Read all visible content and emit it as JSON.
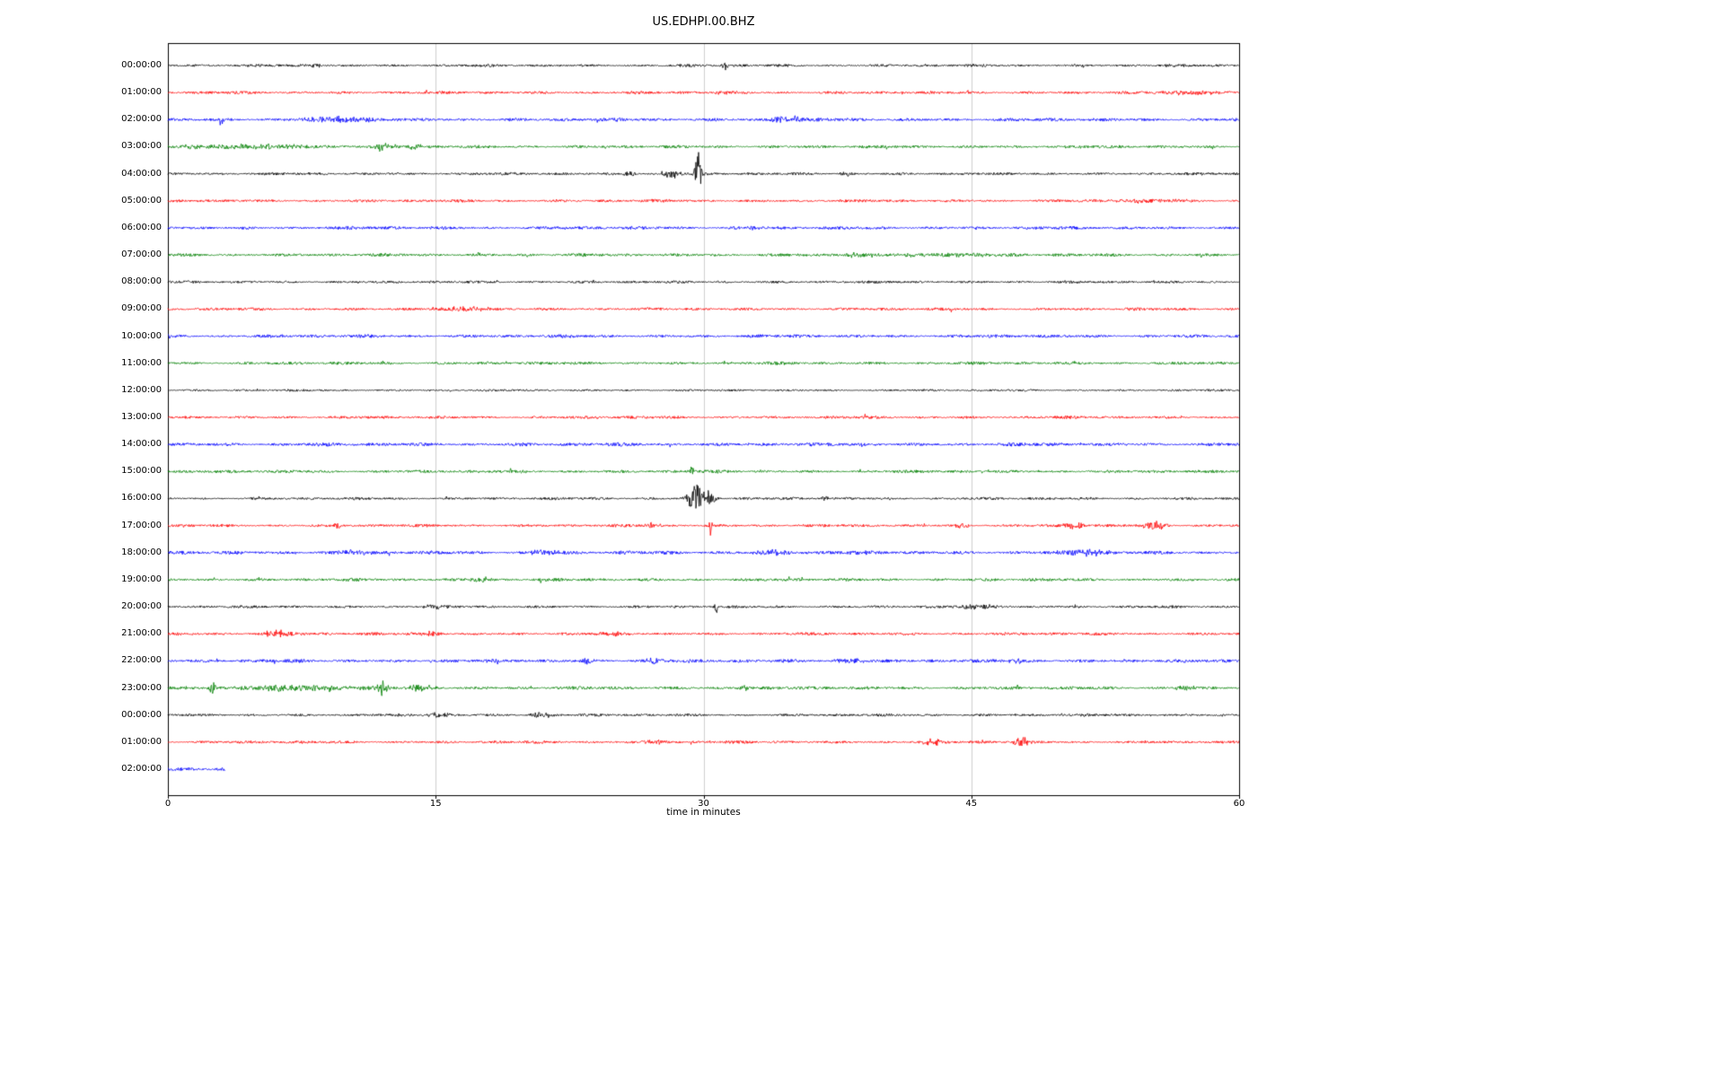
{
  "chart_data": {
    "type": "line",
    "subtype": "seismogram-dayplot",
    "title": "US.EDHPI.00.BHZ",
    "xlabel": "time in minutes",
    "x_range": [
      0,
      60
    ],
    "x_ticks": [
      0,
      15,
      30,
      45,
      60
    ],
    "x_tick_labels": [
      "0",
      "15",
      "30",
      "45",
      "60"
    ],
    "grid": "vertical-light-gray",
    "grid_color": "#cfcfcf",
    "axis_color": "#000000",
    "trace_color_cycle": [
      "#000000",
      "#ff0000",
      "#0000ff",
      "#008000"
    ],
    "rows": [
      {
        "label": "00:00:00",
        "color": "#000000",
        "start_min": 0,
        "end_min": 60,
        "noise": 1.5,
        "events": [
          {
            "t": 8.3,
            "amp": 2.5,
            "w": 0.3
          },
          {
            "t": 31.2,
            "amp": 5,
            "w": 0.1
          },
          {
            "t": 42.5,
            "amp": 3,
            "w": 0.08
          }
        ]
      },
      {
        "label": "01:00:00",
        "color": "#ff0000",
        "start_min": 0,
        "end_min": 60,
        "noise": 1.6,
        "events": [
          {
            "t": 57.5,
            "amp": 2.5,
            "w": 1.2
          },
          {
            "t": 31.0,
            "amp": 2,
            "w": 0.3
          }
        ]
      },
      {
        "label": "02:00:00",
        "color": "#0000ff",
        "start_min": 0,
        "end_min": 60,
        "noise": 1.9,
        "events": [
          {
            "t": 3.0,
            "amp": 6,
            "w": 0.1
          },
          {
            "t": 9.5,
            "amp": 3,
            "w": 1.5
          },
          {
            "t": 34.3,
            "amp": 5,
            "w": 0.3
          },
          {
            "t": 35.2,
            "amp": 4,
            "w": 0.15
          }
        ]
      },
      {
        "label": "03:00:00",
        "color": "#008000",
        "start_min": 0,
        "end_min": 60,
        "noise": 1.7,
        "events": [
          {
            "t": 5.0,
            "amp": 2.5,
            "w": 3.0
          },
          {
            "t": 12.0,
            "amp": 5,
            "w": 0.25
          },
          {
            "t": 13.8,
            "amp": 3,
            "w": 0.4
          }
        ]
      },
      {
        "label": "04:00:00",
        "color": "#000000",
        "start_min": 0,
        "end_min": 60,
        "noise": 1.5,
        "events": [
          {
            "t": 25.8,
            "amp": 3,
            "w": 0.3
          },
          {
            "t": 28.2,
            "amp": 5,
            "w": 0.4
          },
          {
            "t": 29.7,
            "amp": 26,
            "w": 0.12
          },
          {
            "t": 38.0,
            "amp": 2.5,
            "w": 0.3
          }
        ]
      },
      {
        "label": "05:00:00",
        "color": "#ff0000",
        "start_min": 0,
        "end_min": 60,
        "noise": 1.6,
        "events": [
          {
            "t": 55.0,
            "amp": 1.5,
            "w": 2.0
          }
        ]
      },
      {
        "label": "06:00:00",
        "color": "#0000ff",
        "start_min": 0,
        "end_min": 60,
        "noise": 1.8,
        "events": [
          {
            "t": 33.0,
            "amp": 1.5,
            "w": 1.0
          }
        ]
      },
      {
        "label": "07:00:00",
        "color": "#008000",
        "start_min": 0,
        "end_min": 60,
        "noise": 1.7,
        "events": [
          {
            "t": 38.5,
            "amp": 2.5,
            "w": 0.5
          },
          {
            "t": 43.5,
            "amp": 2,
            "w": 2.5
          }
        ]
      },
      {
        "label": "08:00:00",
        "color": "#000000",
        "start_min": 0,
        "end_min": 60,
        "noise": 1.5,
        "events": []
      },
      {
        "label": "09:00:00",
        "color": "#ff0000",
        "start_min": 0,
        "end_min": 60,
        "noise": 1.6,
        "events": [
          {
            "t": 17.0,
            "amp": 2.5,
            "w": 0.8
          }
        ]
      },
      {
        "label": "10:00:00",
        "color": "#0000ff",
        "start_min": 0,
        "end_min": 60,
        "noise": 1.8,
        "events": []
      },
      {
        "label": "11:00:00",
        "color": "#008000",
        "start_min": 0,
        "end_min": 60,
        "noise": 1.7,
        "events": []
      },
      {
        "label": "12:00:00",
        "color": "#000000",
        "start_min": 0,
        "end_min": 60,
        "noise": 1.2,
        "events": []
      },
      {
        "label": "13:00:00",
        "color": "#ff0000",
        "start_min": 0,
        "end_min": 60,
        "noise": 1.6,
        "events": []
      },
      {
        "label": "14:00:00",
        "color": "#0000ff",
        "start_min": 0,
        "end_min": 60,
        "noise": 2.0,
        "events": []
      },
      {
        "label": "15:00:00",
        "color": "#008000",
        "start_min": 0,
        "end_min": 60,
        "noise": 1.7,
        "events": [
          {
            "t": 29.3,
            "amp": 7,
            "w": 0.1
          }
        ]
      },
      {
        "label": "16:00:00",
        "color": "#000000",
        "start_min": 0,
        "end_min": 60,
        "noise": 1.5,
        "events": [
          {
            "t": 29.6,
            "amp": 16,
            "w": 0.35
          },
          {
            "t": 30.3,
            "amp": 6,
            "w": 0.3
          },
          {
            "t": 36.8,
            "amp": 3,
            "w": 0.15
          }
        ]
      },
      {
        "label": "17:00:00",
        "color": "#ff0000",
        "start_min": 0,
        "end_min": 60,
        "noise": 1.6,
        "events": [
          {
            "t": 9.5,
            "amp": 4,
            "w": 0.12
          },
          {
            "t": 27.0,
            "amp": 3.5,
            "w": 0.2
          },
          {
            "t": 30.4,
            "amp": 11,
            "w": 0.08
          },
          {
            "t": 44.5,
            "amp": 3,
            "w": 0.3
          },
          {
            "t": 50.8,
            "amp": 4,
            "w": 0.4
          },
          {
            "t": 55.3,
            "amp": 5,
            "w": 0.5
          }
        ]
      },
      {
        "label": "18:00:00",
        "color": "#0000ff",
        "start_min": 0,
        "end_min": 60,
        "noise": 2.1,
        "events": [
          {
            "t": 10.5,
            "amp": 3,
            "w": 0.6
          },
          {
            "t": 21.0,
            "amp": 3,
            "w": 0.6
          },
          {
            "t": 34.0,
            "amp": 2.5,
            "w": 0.8
          },
          {
            "t": 51.5,
            "amp": 3.5,
            "w": 0.8
          }
        ]
      },
      {
        "label": "19:00:00",
        "color": "#008000",
        "start_min": 0,
        "end_min": 60,
        "noise": 1.7,
        "events": [
          {
            "t": 17.5,
            "amp": 3,
            "w": 0.4
          }
        ]
      },
      {
        "label": "20:00:00",
        "color": "#000000",
        "start_min": 0,
        "end_min": 60,
        "noise": 1.5,
        "events": [
          {
            "t": 14.8,
            "amp": 2.5,
            "w": 0.4
          },
          {
            "t": 30.7,
            "amp": 8,
            "w": 0.08
          },
          {
            "t": 45.5,
            "amp": 3,
            "w": 0.8
          }
        ]
      },
      {
        "label": "21:00:00",
        "color": "#ff0000",
        "start_min": 0,
        "end_min": 60,
        "noise": 1.6,
        "events": [
          {
            "t": 6.2,
            "amp": 3.5,
            "w": 0.8
          },
          {
            "t": 14.8,
            "amp": 3,
            "w": 0.5
          },
          {
            "t": 25.0,
            "amp": 2.5,
            "w": 0.5
          }
        ]
      },
      {
        "label": "22:00:00",
        "color": "#0000ff",
        "start_min": 0,
        "end_min": 60,
        "noise": 1.9,
        "events": [
          {
            "t": 23.5,
            "amp": 2.5,
            "w": 0.4
          },
          {
            "t": 27.2,
            "amp": 3,
            "w": 0.5
          },
          {
            "t": 38.2,
            "amp": 3,
            "w": 0.6
          },
          {
            "t": 47.5,
            "amp": 3,
            "w": 0.4
          }
        ]
      },
      {
        "label": "23:00:00",
        "color": "#008000",
        "start_min": 0,
        "end_min": 60,
        "noise": 1.8,
        "events": [
          {
            "t": 2.5,
            "amp": 7,
            "w": 0.15
          },
          {
            "t": 7.0,
            "amp": 3,
            "w": 2.5
          },
          {
            "t": 12.0,
            "amp": 9,
            "w": 0.2
          },
          {
            "t": 14.2,
            "amp": 4,
            "w": 0.5
          },
          {
            "t": 32.3,
            "amp": 3,
            "w": 0.3
          },
          {
            "t": 57.0,
            "amp": 2.5,
            "w": 0.5
          }
        ]
      },
      {
        "label": "00:00:00",
        "color": "#000000",
        "start_min": 0,
        "end_min": 60,
        "noise": 1.5,
        "events": [
          {
            "t": 15.2,
            "amp": 2.5,
            "w": 0.5
          },
          {
            "t": 21.0,
            "amp": 3,
            "w": 0.6
          }
        ]
      },
      {
        "label": "01:00:00",
        "color": "#ff0000",
        "start_min": 0,
        "end_min": 60,
        "noise": 1.6,
        "events": [
          {
            "t": 27.5,
            "amp": 2.5,
            "w": 0.8
          },
          {
            "t": 42.8,
            "amp": 3,
            "w": 0.4
          },
          {
            "t": 47.8,
            "amp": 6,
            "w": 0.3
          }
        ]
      },
      {
        "label": "02:00:00",
        "color": "#0000ff",
        "start_min": 0,
        "end_min": 3.2,
        "noise": 2.2,
        "events": []
      }
    ]
  }
}
